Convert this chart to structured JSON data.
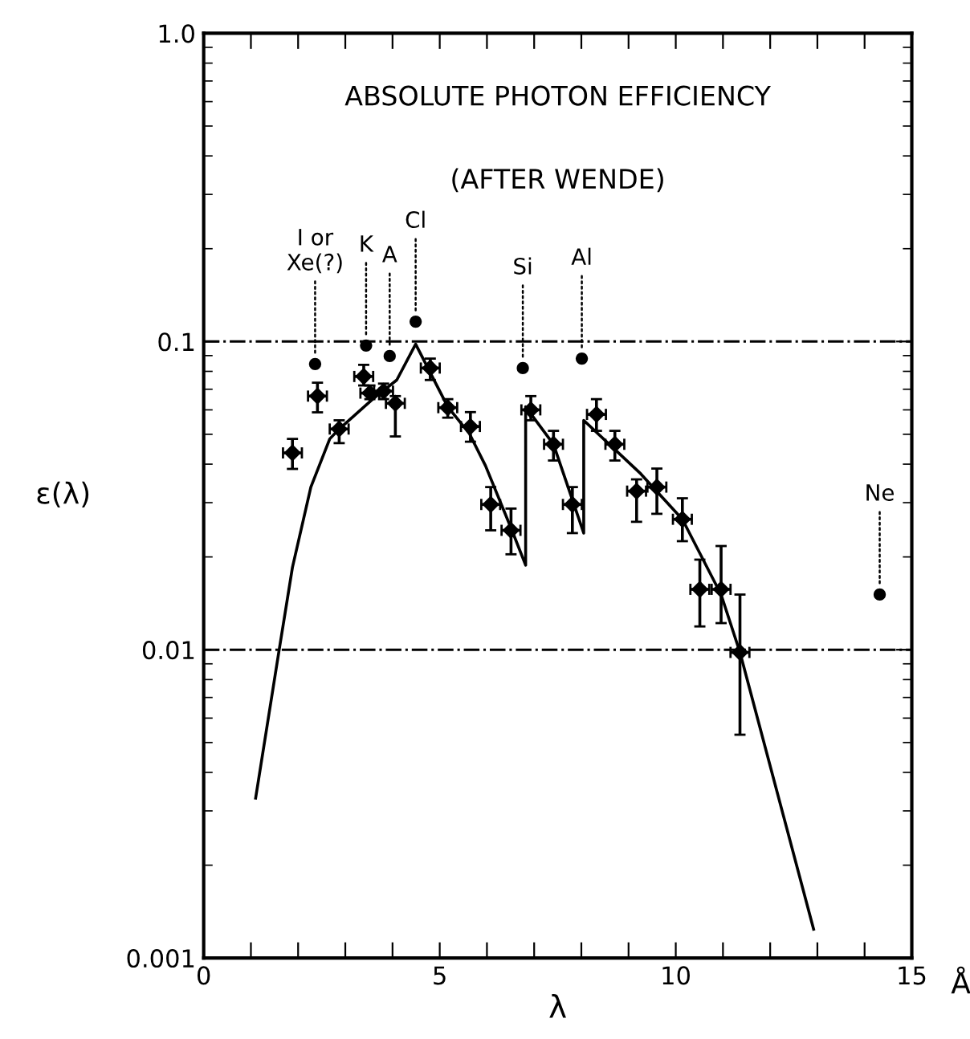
{
  "chart_data": {
    "type": "scatter",
    "title": "ABSOLUTE PHOTON EFFICIENCY",
    "subtitle": "(AFTER WENDE)",
    "xlabel": "λ",
    "ylabel": "ε(λ)",
    "log": "y",
    "xlim": [
      0,
      15
    ],
    "ylim": [
      0.001,
      1.0
    ],
    "xticks": [
      0,
      {
        "value": 1,
        "label": null
      },
      {
        "value": 2,
        "label": null
      },
      {
        "value": 3,
        "label": null
      },
      {
        "value": 4,
        "label": null
      },
      5,
      {
        "value": 6,
        "label": null
      },
      {
        "value": 7,
        "label": null
      },
      {
        "value": 8,
        "label": null
      },
      {
        "value": 9,
        "label": null
      },
      10,
      {
        "value": 11,
        "label": null
      },
      {
        "value": 12,
        "label": null
      },
      {
        "value": 13,
        "label": null
      },
      {
        "value": 14,
        "label": null
      },
      15
    ],
    "yticks": [
      0.001,
      0.01,
      0.1,
      {
        "value": 1.0,
        "label": "1.0"
      }
    ],
    "grid": false,
    "series": [
      {
        "color": "#000000",
        "marker": "diamond",
        "x": [
          1.88,
          2.41,
          2.87,
          3.39,
          3.52,
          3.81,
          4.06,
          4.8,
          5.17,
          5.65,
          6.08,
          6.51,
          6.93,
          7.41,
          7.81,
          8.32,
          8.71,
          9.17,
          9.6,
          10.14,
          10.51,
          10.96,
          11.36
        ],
        "values": [
          0.0435,
          0.0665,
          0.052,
          0.077,
          0.068,
          0.069,
          0.063,
          0.082,
          0.061,
          0.053,
          0.0296,
          0.0244,
          0.06,
          0.0464,
          0.0296,
          0.058,
          0.0464,
          0.0327,
          0.0337,
          0.0265,
          0.0157,
          0.0157,
          0.0098
        ],
        "errors": [
          [
            0.0386,
            0.0483
          ],
          [
            0.0589,
            0.0735
          ],
          [
            0.0468,
            0.0555
          ],
          [
            0.072,
            0.084
          ],
          [
            0.065,
            0.072
          ],
          [
            0.065,
            0.073
          ],
          [
            0.0492,
            0.0665
          ],
          [
            0.075,
            0.088
          ],
          [
            0.0566,
            0.065
          ],
          [
            0.0473,
            0.059
          ],
          [
            0.0244,
            0.0337
          ],
          [
            0.0204,
            0.0287
          ],
          [
            0.0555,
            0.0665
          ],
          [
            0.0411,
            0.0513
          ],
          [
            0.0239,
            0.0337
          ],
          [
            0.0513,
            0.065
          ],
          [
            0.0411,
            0.0513
          ],
          [
            0.026,
            0.0357
          ],
          [
            0.0276,
            0.0387
          ],
          [
            0.0225,
            0.031
          ],
          [
            0.0119,
            0.0196
          ],
          [
            0.0122,
            0.0217
          ],
          [
            0.0053,
            0.0151
          ]
        ],
        "xerrors": [
          0.2,
          0.2,
          0.2,
          0.2,
          0.2,
          0.2,
          0.2,
          0.2,
          0.2,
          0.2,
          0.2,
          0.2,
          0.2,
          0.2,
          0.2,
          0.2,
          0.2,
          0.2,
          0.2,
          0.2,
          0.2,
          0.2,
          0.2
        ]
      },
      {
        "color": "#000000",
        "marker": "circle",
        "x": [
          2.36,
          3.44,
          3.94,
          4.49,
          6.76,
          8.01,
          14.32
        ],
        "values": [
          0.0845,
          0.097,
          0.0897,
          0.116,
          0.082,
          0.088,
          0.0151
        ]
      },
      {
        "type": "line",
        "color": "#000000",
        "line_style": "solid",
        "x": [
          1.1,
          1.59,
          1.88,
          2.27,
          2.67,
          2.87,
          3.58,
          4.09,
          4.49,
          5.17,
          5.63,
          5.97,
          6.53,
          6.82,
          6.82,
          7.41,
          8.05,
          8.05,
          9.26,
          10.14,
          10.96,
          11.36,
          12.92
        ],
        "values": [
          0.0033,
          0.0098,
          0.0185,
          0.0337,
          0.0483,
          0.052,
          0.065,
          0.075,
          0.098,
          0.0614,
          0.0502,
          0.0395,
          0.0244,
          0.0188,
          0.0614,
          0.0464,
          0.0239,
          0.0555,
          0.0372,
          0.0265,
          0.0151,
          0.0098,
          0.00124
        ]
      }
    ],
    "ref_lines": [
      {
        "axis": "y",
        "value": 0.1,
        "line_style": "dashdot",
        "color": "#000000"
      },
      {
        "axis": "y",
        "value": 0.01,
        "line_style": "dashdot",
        "color": "#000000"
      }
    ],
    "annotations": [
      {
        "text": "I or\nXe(?)",
        "x": 2.36,
        "y": 0.0845
      },
      {
        "text": "K",
        "x": 3.44,
        "y": 0.097
      },
      {
        "text": "A",
        "x": 3.94,
        "y": 0.0897
      },
      {
        "text": "Cl",
        "x": 4.49,
        "y": 0.116
      },
      {
        "text": "Si",
        "x": 6.76,
        "y": 0.082
      },
      {
        "text": "Al",
        "x": 8.01,
        "y": 0.088
      },
      {
        "text": "Ne",
        "x": 14.32,
        "y": 0.0151
      },
      "Å"
    ]
  }
}
